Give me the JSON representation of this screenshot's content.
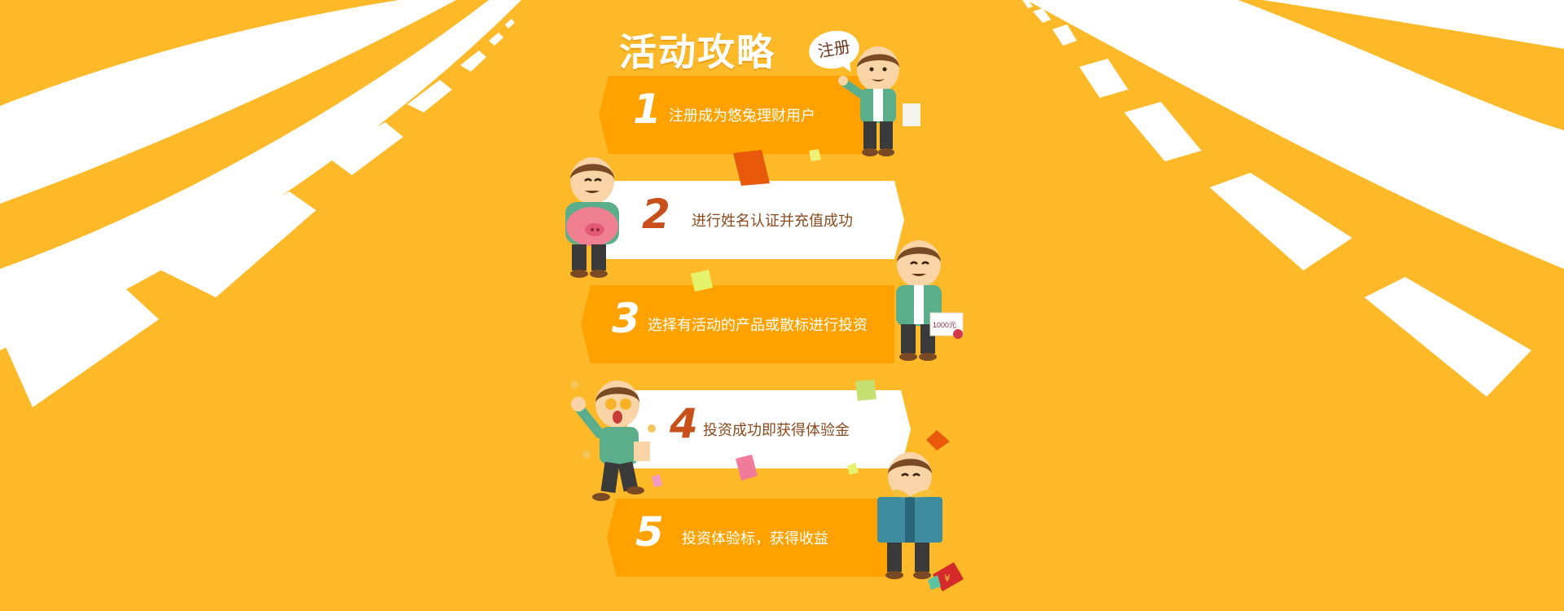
{
  "page": {
    "title": "活动攻略",
    "bubble_text": "注册"
  },
  "steps": [
    {
      "number": "1",
      "text": "注册成为悠兔理财用户",
      "style": "orange"
    },
    {
      "number": "2",
      "text": "进行姓名认证并充值成功",
      "style": "white"
    },
    {
      "number": "3",
      "text": "选择有活动的产品或散标进行投资",
      "style": "orange"
    },
    {
      "number": "4",
      "text": "投资成功即获得体验金",
      "style": "white"
    },
    {
      "number": "5",
      "text": "投资体验标，获得收益",
      "style": "orange"
    }
  ],
  "certificate_text": "1000元",
  "envelope_symbol": "¥",
  "colors": {
    "background": "#FDB927",
    "banner_orange": "#FFA200",
    "banner_white": "#FFFFFF",
    "road_white": "#FFFFFF",
    "number_dark": "#C9501A"
  }
}
